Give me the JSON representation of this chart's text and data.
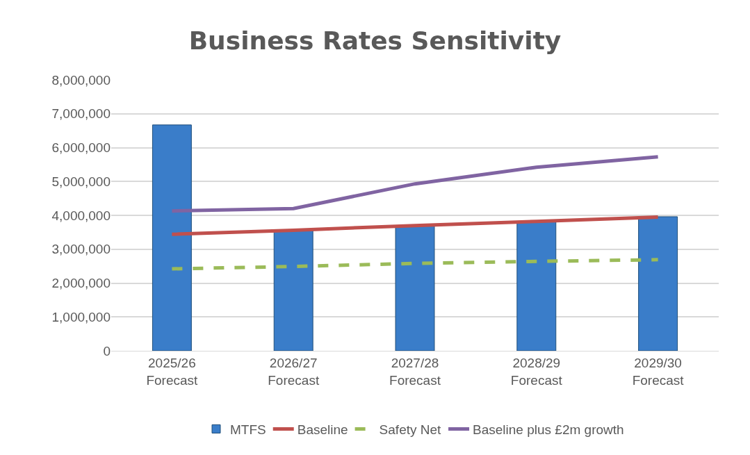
{
  "chart_data": {
    "type": "bar",
    "title": "Business Rates Sensitivity",
    "categories": [
      "2025/26\nForecast",
      "2026/27\nForecast",
      "2027/28\nForecast",
      "2028/29\nForecast",
      "2029/30\nForecast"
    ],
    "series": [
      {
        "name": "MTFS",
        "color": "#3a7dc9",
        "values": [
          6670000,
          3560000,
          3700000,
          3820000,
          3960000
        ]
      },
      {
        "name": "Baseline",
        "type": "line",
        "color": "#c0504d",
        "line_style": "solid",
        "values": [
          3440000,
          3560000,
          3700000,
          3820000,
          3950000
        ]
      },
      {
        "name": "Safety Net",
        "type": "line",
        "color": "#9bbb59",
        "line_style": "dashed",
        "values": [
          2420000,
          2490000,
          2580000,
          2640000,
          2690000
        ]
      },
      {
        "name": "Baseline plus £2m growth",
        "type": "line",
        "color": "#8064a2",
        "line_style": "solid",
        "values": [
          4130000,
          4200000,
          4930000,
          5420000,
          5730000
        ]
      }
    ],
    "ylim": [
      0,
      8000000
    ],
    "yticks": [
      {
        "value": 0,
        "label": "0"
      },
      {
        "value": 1000000,
        "label": "1,000,000"
      },
      {
        "value": 2000000,
        "label": "2,000,000"
      },
      {
        "value": 3000000,
        "label": "3,000,000"
      },
      {
        "value": 4000000,
        "label": "4,000,000"
      },
      {
        "value": 5000000,
        "label": "5,000,000"
      },
      {
        "value": 6000000,
        "label": "6,000,000"
      },
      {
        "value": 7000000,
        "label": "7,000,000"
      },
      {
        "value": 8000000,
        "label": "8,000,000"
      }
    ],
    "grid": "y",
    "legend": "bottom"
  }
}
